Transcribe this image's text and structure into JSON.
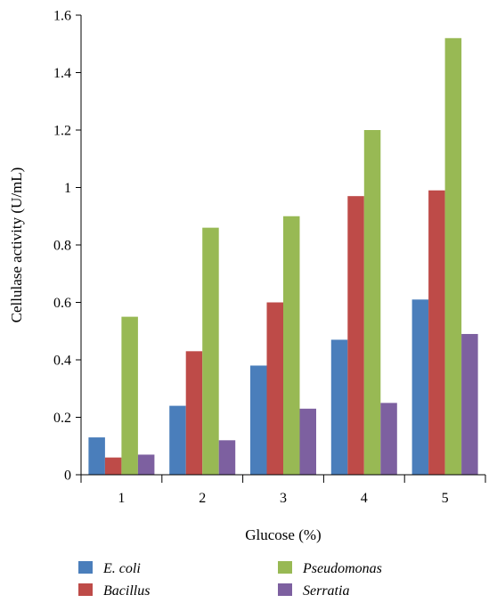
{
  "chart_data": {
    "type": "bar",
    "xlabel": "Glucose (%)",
    "ylabel": "Cellulase activity  (U/mL)",
    "categories": [
      "1",
      "2",
      "3",
      "4",
      "5"
    ],
    "ylim": [
      0,
      1.6
    ],
    "yticks": [
      0,
      0.2,
      0.4,
      0.6,
      0.8,
      1,
      1.2,
      1.4,
      1.6
    ],
    "ytick_labels": [
      "0",
      "0.2",
      "0.4",
      "0.6",
      "0.8",
      "1",
      "1.2",
      "1.4",
      "1.6"
    ],
    "legend_position": "bottom",
    "grid": false,
    "series": [
      {
        "name": "E. coli",
        "color": "#4a7ebb",
        "values": [
          0.13,
          0.24,
          0.38,
          0.47,
          0.61
        ]
      },
      {
        "name": "Bacillus",
        "color": "#be4b48",
        "values": [
          0.06,
          0.43,
          0.6,
          0.97,
          0.99
        ]
      },
      {
        "name": "Pseudomonas",
        "color": "#98b954",
        "values": [
          0.55,
          0.86,
          0.9,
          1.2,
          1.52
        ]
      },
      {
        "name": "Serratia",
        "color": "#7d60a0",
        "values": [
          0.07,
          0.12,
          0.23,
          0.25,
          0.49
        ]
      }
    ]
  }
}
